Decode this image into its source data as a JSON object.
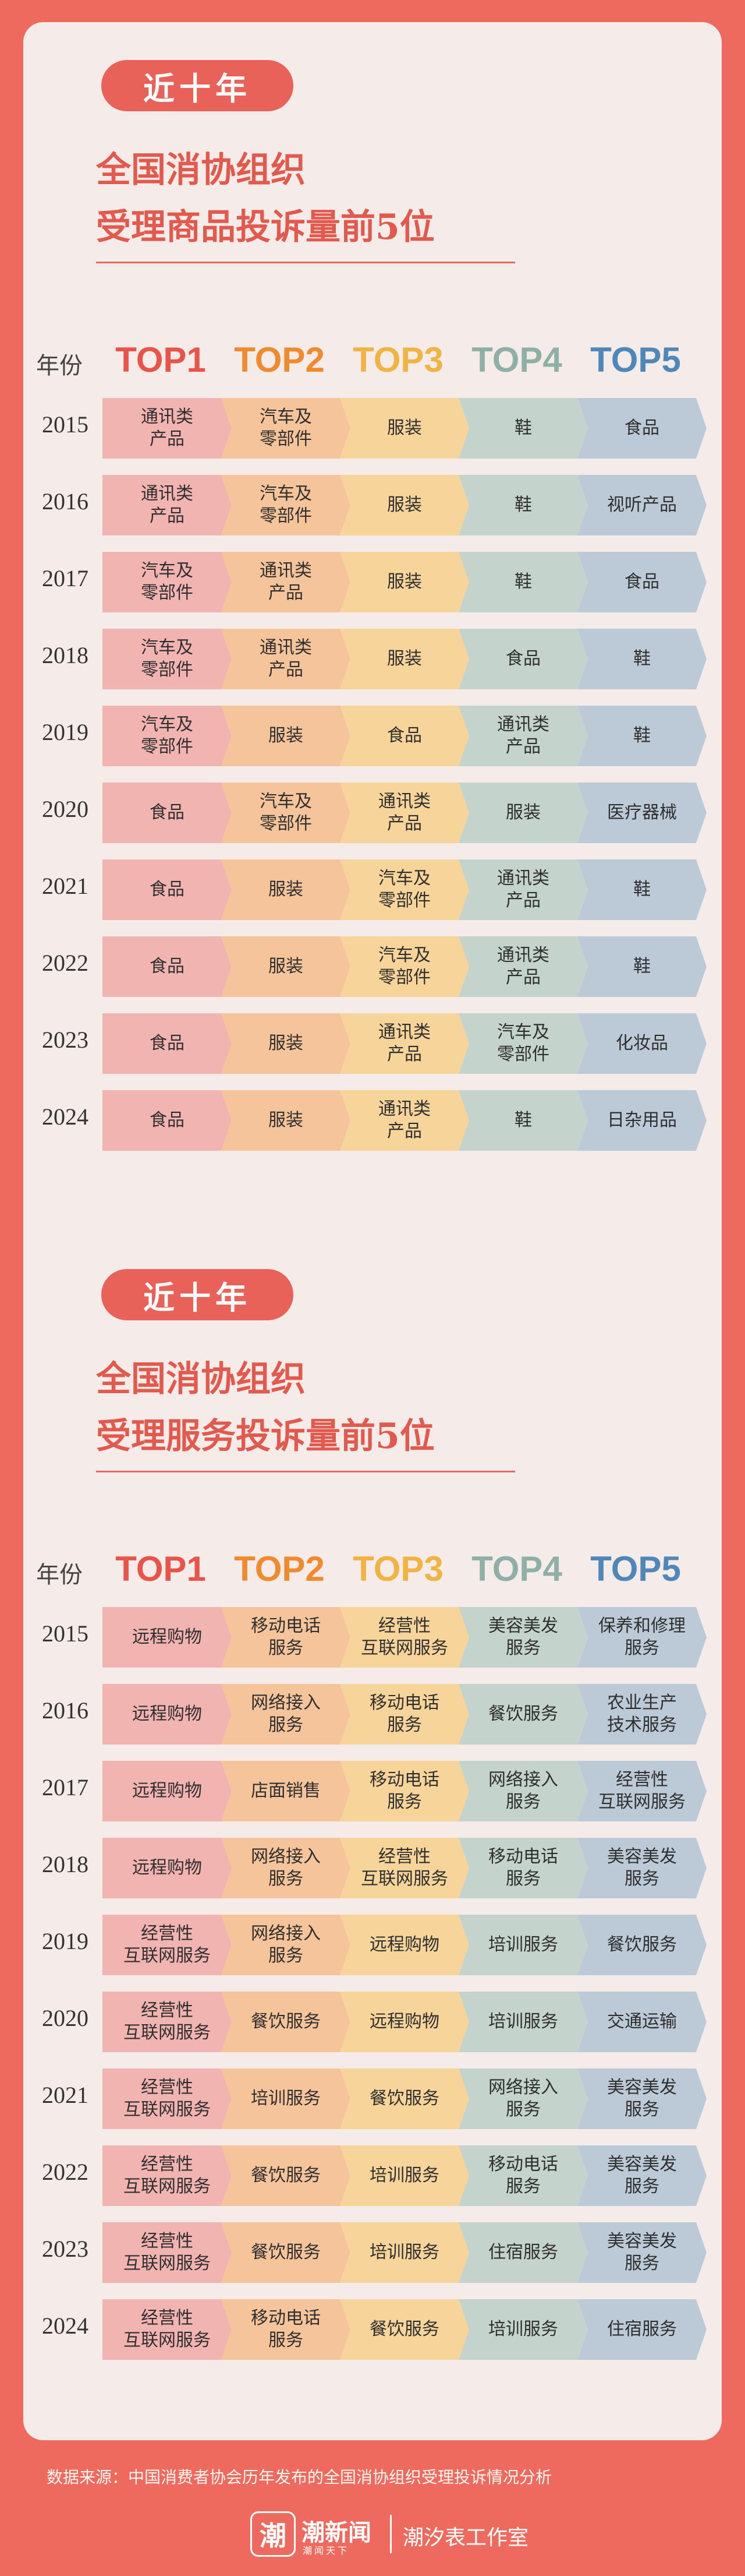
{
  "colors": {
    "background": "#ee6a5e",
    "card": "#f5ebe8",
    "accent": "#e25a4e",
    "top1": "#e8544a",
    "top2": "#f08a2e",
    "top3": "#f1b443",
    "top4": "#8fb0a6",
    "top5": "#4f87b8"
  },
  "goods": {
    "pill": "近十年",
    "title_line1": "全国消协组织",
    "title_line2": "受理商品投诉量前5位",
    "year_label": "年份",
    "tops": [
      "TOP1",
      "TOP2",
      "TOP3",
      "TOP4",
      "TOP5"
    ],
    "rows": [
      {
        "year": "2015",
        "items": [
          "通讯类\n产品",
          "汽车及\n零部件",
          "服装",
          "鞋",
          "食品"
        ]
      },
      {
        "year": "2016",
        "items": [
          "通讯类\n产品",
          "汽车及\n零部件",
          "服装",
          "鞋",
          "视听产品"
        ]
      },
      {
        "year": "2017",
        "items": [
          "汽车及\n零部件",
          "通讯类\n产品",
          "服装",
          "鞋",
          "食品"
        ]
      },
      {
        "year": "2018",
        "items": [
          "汽车及\n零部件",
          "通讯类\n产品",
          "服装",
          "食品",
          "鞋"
        ]
      },
      {
        "year": "2019",
        "items": [
          "汽车及\n零部件",
          "服装",
          "食品",
          "通讯类\n产品",
          "鞋"
        ]
      },
      {
        "year": "2020",
        "items": [
          "食品",
          "汽车及\n零部件",
          "通讯类\n产品",
          "服装",
          "医疗器械"
        ]
      },
      {
        "year": "2021",
        "items": [
          "食品",
          "服装",
          "汽车及\n零部件",
          "通讯类\n产品",
          "鞋"
        ]
      },
      {
        "year": "2022",
        "items": [
          "食品",
          "服装",
          "汽车及\n零部件",
          "通讯类\n产品",
          "鞋"
        ]
      },
      {
        "year": "2023",
        "items": [
          "食品",
          "服装",
          "通讯类\n产品",
          "汽车及\n零部件",
          "化妆品"
        ]
      },
      {
        "year": "2024",
        "items": [
          "食品",
          "服装",
          "通讯类\n产品",
          "鞋",
          "日杂用品"
        ]
      }
    ]
  },
  "services": {
    "pill": "近十年",
    "title_line1": "全国消协组织",
    "title_line2": "受理服务投诉量前5位",
    "year_label": "年份",
    "tops": [
      "TOP1",
      "TOP2",
      "TOP3",
      "TOP4",
      "TOP5"
    ],
    "rows": [
      {
        "year": "2015",
        "items": [
          "远程购物",
          "移动电话\n服务",
          "经营性\n互联网服务",
          "美容美发\n服务",
          "保养和修理\n服务"
        ]
      },
      {
        "year": "2016",
        "items": [
          "远程购物",
          "网络接入\n服务",
          "移动电话\n服务",
          "餐饮服务",
          "农业生产\n技术服务"
        ]
      },
      {
        "year": "2017",
        "items": [
          "远程购物",
          "店面销售",
          "移动电话\n服务",
          "网络接入\n服务",
          "经营性\n互联网服务"
        ]
      },
      {
        "year": "2018",
        "items": [
          "远程购物",
          "网络接入\n服务",
          "经营性\n互联网服务",
          "移动电话\n服务",
          "美容美发\n服务"
        ]
      },
      {
        "year": "2019",
        "items": [
          "经营性\n互联网服务",
          "网络接入\n服务",
          "远程购物",
          "培训服务",
          "餐饮服务"
        ]
      },
      {
        "year": "2020",
        "items": [
          "经营性\n互联网服务",
          "餐饮服务",
          "远程购物",
          "培训服务",
          "交通运输"
        ]
      },
      {
        "year": "2021",
        "items": [
          "经营性\n互联网服务",
          "培训服务",
          "餐饮服务",
          "网络接入\n服务",
          "美容美发\n服务"
        ]
      },
      {
        "year": "2022",
        "items": [
          "经营性\n互联网服务",
          "餐饮服务",
          "培训服务",
          "移动电话\n服务",
          "美容美发\n服务"
        ]
      },
      {
        "year": "2023",
        "items": [
          "经营性\n互联网服务",
          "餐饮服务",
          "培训服务",
          "住宿服务",
          "美容美发\n服务"
        ]
      },
      {
        "year": "2024",
        "items": [
          "经营性\n互联网服务",
          "移动电话\n服务",
          "餐饮服务",
          "培训服务",
          "住宿服务"
        ]
      }
    ]
  },
  "footer": {
    "source": "数据来源：中国消费者协会历年发布的全国消协组织受理投诉情况分析",
    "logo_char": "潮",
    "logo_name": "潮新闻",
    "logo_slogan": "潮闻天下",
    "studio": "潮汐表工作室"
  }
}
